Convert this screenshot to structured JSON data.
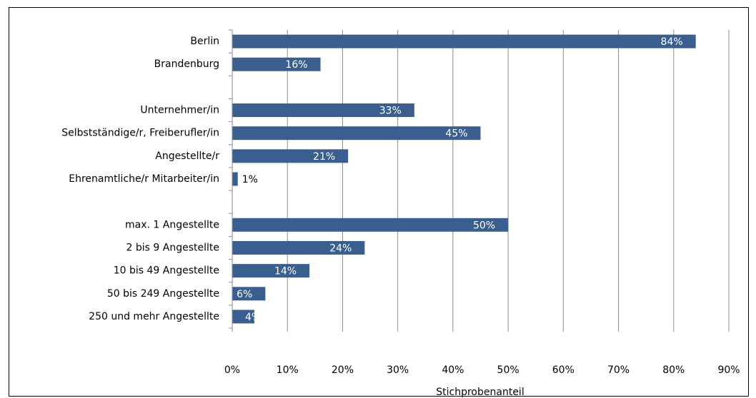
{
  "chart_data": {
    "type": "bar",
    "orientation": "horizontal",
    "categories": [
      "Berlin",
      "Brandenburg",
      null,
      "Unternehmer/in",
      "Selbstständige/r, Freiberufler/in",
      "Angestellte/r",
      "Ehrenamtliche/r Mitarbeiter/in",
      null,
      "max. 1 Angestellte",
      "2 bis 9 Angestellte",
      "10 bis 49 Angestellte",
      "50 bis 249 Angestellte",
      "250 und mehr Angestellte"
    ],
    "values": [
      84,
      16,
      null,
      33,
      45,
      21,
      1,
      null,
      50,
      24,
      14,
      6,
      4
    ],
    "value_labels": [
      "84%",
      "16%",
      null,
      "33%",
      "45%",
      "21%",
      "1%",
      null,
      "50%",
      "24%",
      "14%",
      "6%",
      "4%"
    ],
    "color": "#3a5f8f",
    "xlabel": "Stichprobenanteil",
    "xlim": [
      0,
      90
    ],
    "xticks": [
      {
        "value": 0,
        "label": "0%"
      },
      {
        "value": 10,
        "label": "10%"
      },
      {
        "value": 20,
        "label": "20%"
      },
      {
        "value": 30,
        "label": "30%"
      },
      {
        "value": 40,
        "label": "40%"
      },
      {
        "value": 50,
        "label": "50%"
      },
      {
        "value": 60,
        "label": "60%"
      },
      {
        "value": 70,
        "label": "70%"
      },
      {
        "value": 80,
        "label": "80%"
      },
      {
        "value": 90,
        "label": "90%"
      }
    ],
    "grid": true
  }
}
